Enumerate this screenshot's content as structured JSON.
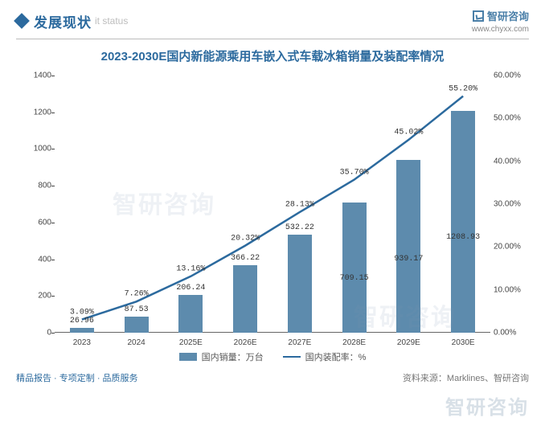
{
  "header": {
    "title": "发展现状",
    "subtitle": "it status",
    "brand": "智研咨询",
    "url": "www.chyxx.com"
  },
  "chart": {
    "type": "bar+line",
    "title": "2023-2030E国内新能源乘用车嵌入式车载冰箱销量及装配率情况",
    "categories": [
      "2023",
      "2024",
      "2025E",
      "2026E",
      "2027E",
      "2028E",
      "2029E",
      "2030E"
    ],
    "bar_values": [
      26.96,
      87.53,
      206.24,
      366.22,
      532.22,
      709.15,
      939.17,
      1208.93
    ],
    "line_values_pct": [
      3.09,
      7.26,
      13.16,
      20.32,
      28.13,
      35.7,
      45.02,
      55.2
    ],
    "bar_value_labels": [
      "26.96",
      "87.53",
      "206.24",
      "366.22",
      "532.22",
      "709.15",
      "939.17",
      "1208.93"
    ],
    "line_value_labels": [
      "3.09%",
      "7.26%",
      "13.16%",
      "20.32%",
      "28.13%",
      "35.70%",
      "45.02%",
      "55.20%"
    ],
    "left_axis": {
      "min": 0,
      "max": 1400,
      "step": 200
    },
    "right_axis": {
      "min": 0,
      "max": 60,
      "step": 10,
      "suffix": ".00%"
    },
    "bar_color": "#5d8bad",
    "line_color": "#2c6a9e",
    "line_width": 2.5,
    "background_color": "#ffffff",
    "axis_font_size": 10,
    "title_font_size": 15,
    "title_color": "#2c6a9e",
    "legend": {
      "bar_label": "国内销量：万台",
      "line_label": "国内装配率：%"
    }
  },
  "footer": {
    "left": "精品报告 · 专项定制 · 品质服务",
    "right": "资料来源：Marklines、智研咨询"
  },
  "watermark": "智研咨询"
}
